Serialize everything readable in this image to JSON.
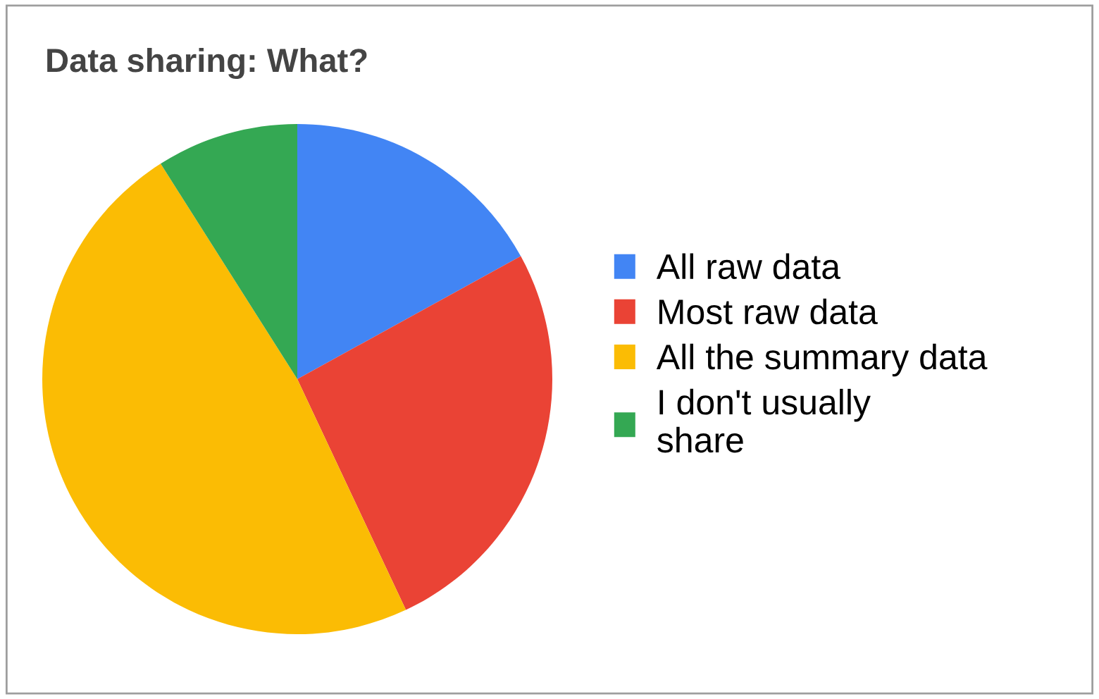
{
  "chart_data": {
    "type": "pie",
    "title": "Data sharing: What?",
    "categories": [
      "All raw data",
      "Most raw data",
      "All the summary data",
      "I don't usually share"
    ],
    "values": [
      17,
      26,
      48,
      9
    ],
    "colors": [
      "#4285f4",
      "#ea4335",
      "#fbbc04",
      "#34a853"
    ],
    "legend": "right"
  }
}
